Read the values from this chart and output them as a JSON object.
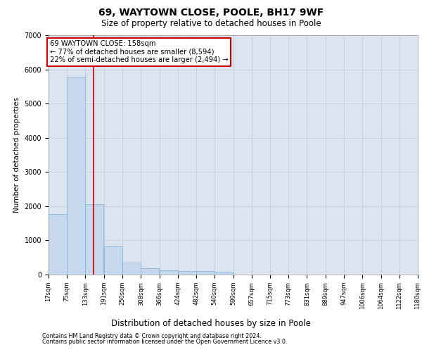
{
  "title_line1": "69, WAYTOWN CLOSE, POOLE, BH17 9WF",
  "title_line2": "Size of property relative to detached houses in Poole",
  "xlabel": "Distribution of detached houses by size in Poole",
  "ylabel": "Number of detached properties",
  "footnote1": "Contains HM Land Registry data © Crown copyright and database right 2024.",
  "footnote2": "Contains public sector information licensed under the Open Government Licence v3.0.",
  "bar_color": "#c5d8ed",
  "bar_edge_color": "#7aaed4",
  "grid_color": "#c8d0dc",
  "background_color": "#dce4ef",
  "annotation_box_color": "#cc0000",
  "annotation_text": "69 WAYTOWN CLOSE: 158sqm\n← 77% of detached houses are smaller (8,594)\n22% of semi-detached houses are larger (2,494) →",
  "property_line_x": 158,
  "bin_edges": [
    17,
    75,
    133,
    191,
    250,
    308,
    366,
    424,
    482,
    540,
    599,
    657,
    715,
    773,
    831,
    889,
    947,
    1006,
    1064,
    1122,
    1180
  ],
  "bar_heights": [
    1780,
    5780,
    2060,
    830,
    340,
    190,
    120,
    110,
    100,
    80,
    0,
    0,
    0,
    0,
    0,
    0,
    0,
    0,
    0,
    0
  ],
  "ylim": [
    0,
    7000
  ],
  "yticks": [
    0,
    1000,
    2000,
    3000,
    4000,
    5000,
    6000,
    7000
  ],
  "tick_labels": [
    "17sqm",
    "75sqm",
    "133sqm",
    "191sqm",
    "250sqm",
    "308sqm",
    "366sqm",
    "424sqm",
    "482sqm",
    "540sqm",
    "599sqm",
    "657sqm",
    "715sqm",
    "773sqm",
    "831sqm",
    "889sqm",
    "947sqm",
    "1006sqm",
    "1064sqm",
    "1122sqm",
    "1180sqm"
  ],
  "title1_fontsize": 10,
  "title2_fontsize": 8.5,
  "ylabel_fontsize": 7.5,
  "xlabel_fontsize": 8.5,
  "tick_fontsize": 6,
  "footnote_fontsize": 5.8
}
